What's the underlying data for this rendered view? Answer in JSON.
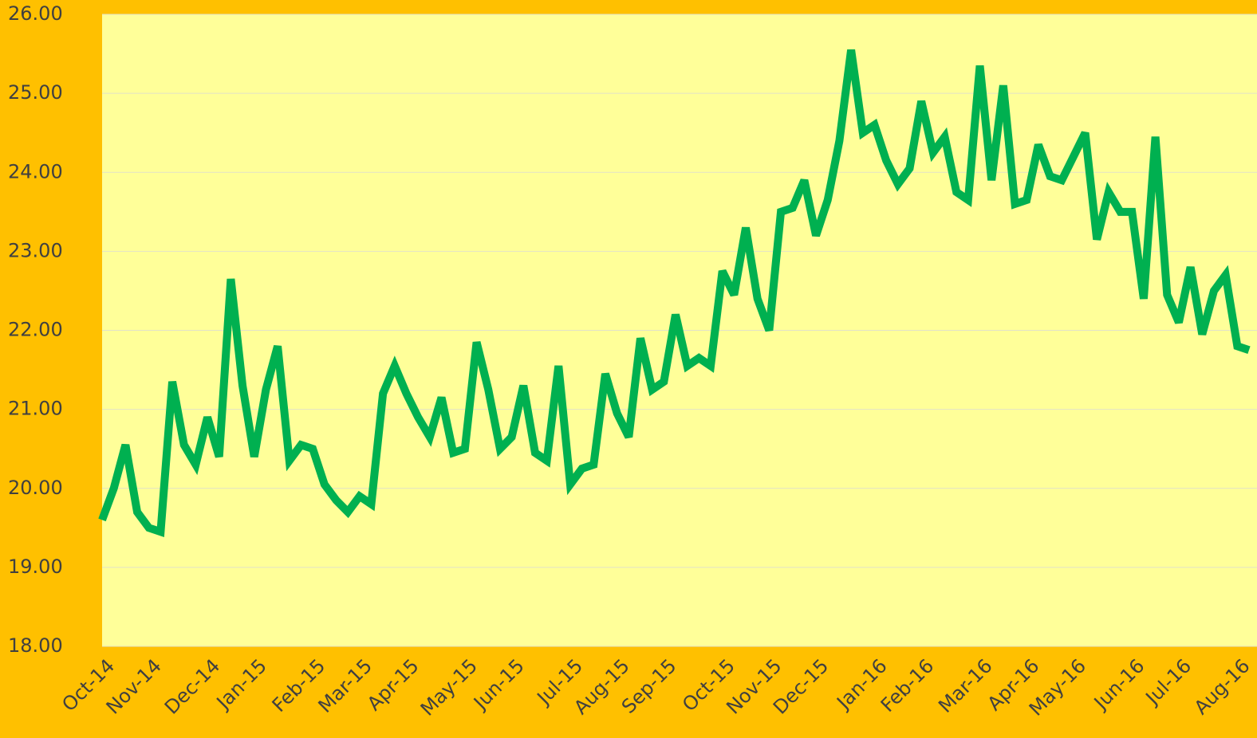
{
  "chart_data": {
    "type": "line",
    "categories": [
      "Oct-14",
      null,
      null,
      null,
      "Nov-14",
      null,
      null,
      null,
      null,
      "Dec-14",
      null,
      null,
      null,
      "Jan-15",
      null,
      null,
      null,
      null,
      "Feb-15",
      null,
      null,
      null,
      "Mar-15",
      null,
      null,
      null,
      "Apr-15",
      null,
      null,
      null,
      null,
      "May-15",
      null,
      null,
      null,
      "Jun-15",
      null,
      null,
      null,
      null,
      "Jul-15",
      null,
      null,
      null,
      "Aug-15",
      null,
      null,
      null,
      "Sep-15",
      null,
      null,
      null,
      null,
      "Oct-15",
      null,
      null,
      null,
      "Nov-15",
      null,
      null,
      null,
      "Dec-15",
      null,
      null,
      null,
      null,
      "Jan-16",
      null,
      null,
      null,
      "Feb-16",
      null,
      null,
      null,
      null,
      "Mar-16",
      null,
      null,
      null,
      "Apr-16",
      null,
      null,
      null,
      "May-16",
      null,
      null,
      null,
      null,
      "Jun-16",
      null,
      null,
      null,
      "Jul-16",
      null,
      null,
      null,
      null,
      "Aug-16",
      null
    ],
    "series": [
      {
        "color": "#00B050",
        "values": [
          19.6,
          20.0,
          20.55,
          19.7,
          19.5,
          19.45,
          21.35,
          20.55,
          20.3,
          20.9,
          20.4,
          22.65,
          21.3,
          20.4,
          21.25,
          21.8,
          20.35,
          20.55,
          20.5,
          20.05,
          19.85,
          19.7,
          19.9,
          19.8,
          21.2,
          21.55,
          21.2,
          20.9,
          20.65,
          21.15,
          20.45,
          20.5,
          21.85,
          21.25,
          20.5,
          20.65,
          21.3,
          20.45,
          20.35,
          21.55,
          20.05,
          20.25,
          20.3,
          21.45,
          20.95,
          20.65,
          21.9,
          21.25,
          21.35,
          22.2,
          21.55,
          21.65,
          21.55,
          22.75,
          22.45,
          23.3,
          22.4,
          22.0,
          23.5,
          23.55,
          23.9,
          23.2,
          23.65,
          24.4,
          25.55,
          24.5,
          24.6,
          24.15,
          23.85,
          24.05,
          24.9,
          24.25,
          24.45,
          23.75,
          23.65,
          25.35,
          23.9,
          25.1,
          23.6,
          23.65,
          24.35,
          23.95,
          23.9,
          24.2,
          24.5,
          23.15,
          23.75,
          23.5,
          23.5,
          22.4,
          24.45,
          22.45,
          22.1,
          22.8,
          21.95,
          22.5,
          22.7,
          21.8,
          21.75
        ]
      }
    ],
    "ylim": [
      18,
      26
    ],
    "yticks": [
      {
        "value": 18,
        "label": "18.00"
      },
      {
        "value": 19,
        "label": "19.00"
      },
      {
        "value": 20,
        "label": "20.00"
      },
      {
        "value": 21,
        "label": "21.00"
      },
      {
        "value": 22,
        "label": "22.00"
      },
      {
        "value": 23,
        "label": "23.00"
      },
      {
        "value": 24,
        "label": "24.00"
      },
      {
        "value": 25,
        "label": "25.00"
      },
      {
        "value": 26,
        "label": "26.00"
      }
    ],
    "grid": true,
    "plot_color": "#FFFF99"
  }
}
